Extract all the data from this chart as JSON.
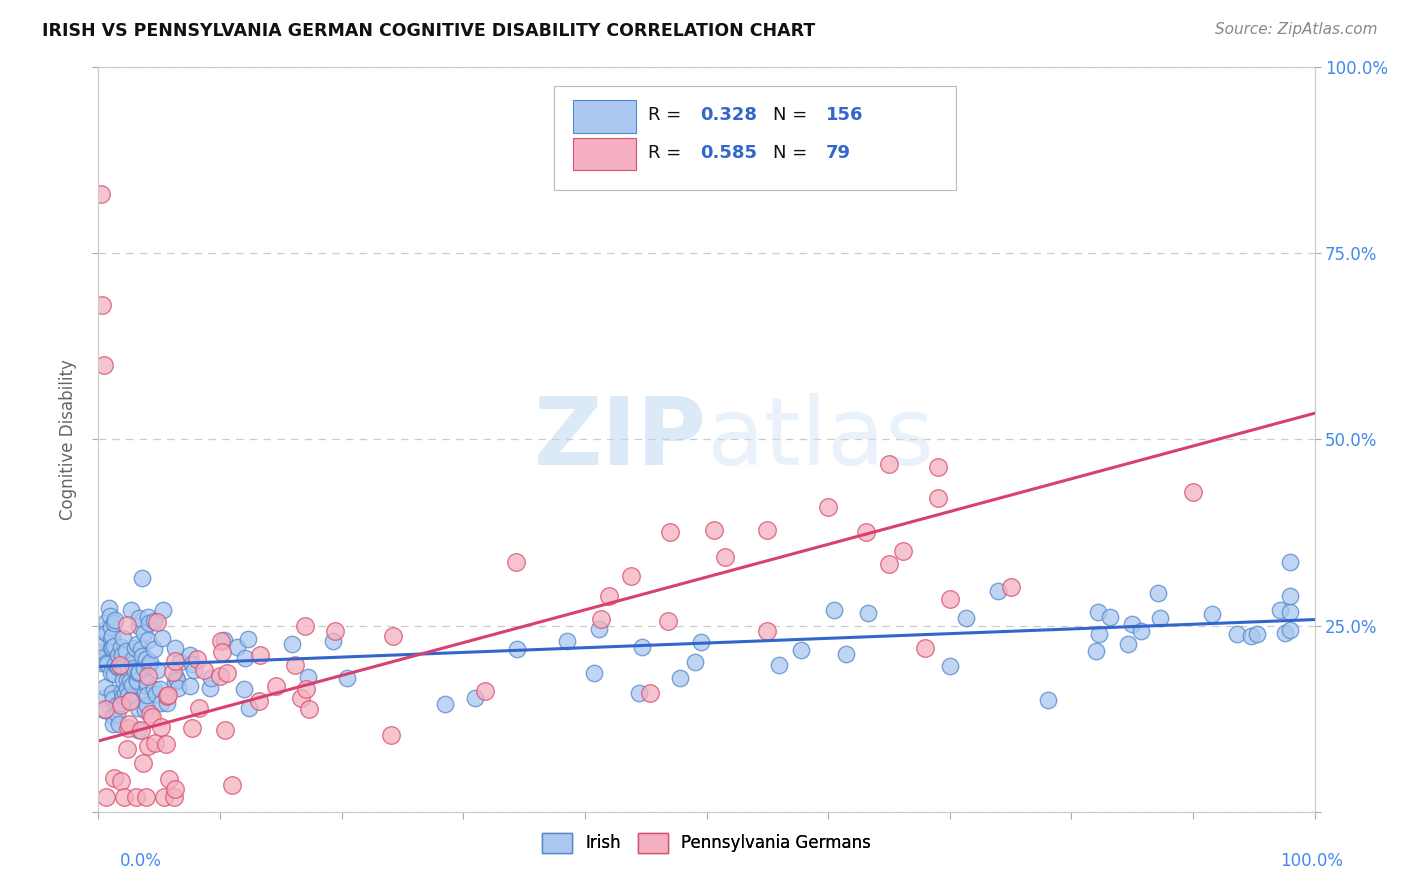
{
  "title": "IRISH VS PENNSYLVANIA GERMAN COGNITIVE DISABILITY CORRELATION CHART",
  "source": "Source: ZipAtlas.com",
  "ylabel": "Cognitive Disability",
  "legend_irish_R": "0.328",
  "legend_irish_N": "156",
  "legend_pg_R": "0.585",
  "legend_pg_N": "79",
  "legend1_label": "Irish",
  "legend2_label": "Pennsylvania Germans",
  "irish_fill": "#aac8f0",
  "irish_edge": "#5588cc",
  "pg_fill": "#f4b0c0",
  "pg_edge": "#d85070",
  "irish_line_color": "#3366cc",
  "pg_line_color": "#d84070",
  "watermark_zip": "#c8daf0",
  "watermark_atlas": "#c8daf0",
  "background_color": "#ffffff",
  "grid_color": "#cccccc",
  "title_color": "#111111",
  "axis_label_color": "#666666",
  "tick_color": "#4488ee",
  "legend_text_color": "#111111",
  "legend_val_color": "#3366cc",
  "irish_trend_x0": 0.0,
  "irish_trend_x1": 1.0,
  "irish_trend_y0": 0.195,
  "irish_trend_y1": 0.258,
  "pg_trend_x0": 0.0,
  "pg_trend_x1": 1.0,
  "pg_trend_y0": 0.095,
  "pg_trend_y1": 0.535,
  "xlim": [
    0.0,
    1.0
  ],
  "ylim": [
    0.0,
    1.0
  ],
  "yticks": [
    0.0,
    0.25,
    0.5,
    0.75,
    1.0
  ],
  "ytick_labels_right": [
    "",
    "25.0%",
    "50.0%",
    "75.0%",
    "100.0%"
  ]
}
